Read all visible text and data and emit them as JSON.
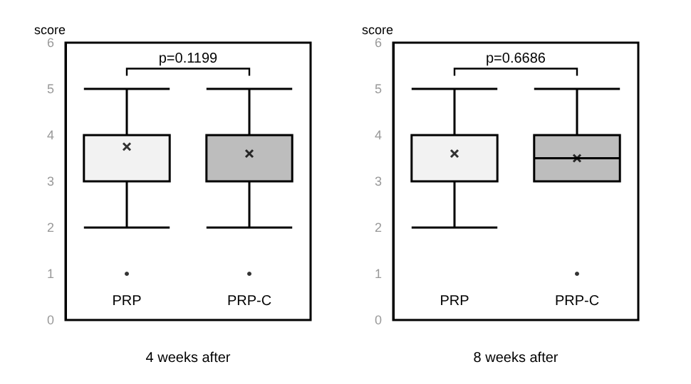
{
  "chart_data": [
    {
      "type": "box",
      "xlabel": "4 weeks after",
      "ylabel": "score",
      "categories": [
        "PRP",
        "PRP-C"
      ],
      "colors": [
        "#f2f2f2",
        "#bdbdbd"
      ],
      "boxes": [
        {
          "low": 2,
          "q1": 3,
          "median": 4,
          "q3": 4,
          "high": 5,
          "mean": 3.75,
          "outliers": [
            1
          ]
        },
        {
          "low": 2,
          "q1": 3,
          "median": 4,
          "q3": 4,
          "high": 5,
          "mean": 3.6,
          "outliers": [
            1
          ]
        }
      ],
      "ylim": [
        0,
        6
      ],
      "yticks": [
        0,
        1,
        2,
        3,
        4,
        5,
        6
      ],
      "annotations": [
        "p=0.1199"
      ]
    },
    {
      "type": "box",
      "xlabel": "8 weeks after",
      "ylabel": "score",
      "categories": [
        "PRP",
        "PRP-C"
      ],
      "colors": [
        "#f2f2f2",
        "#bdbdbd"
      ],
      "boxes": [
        {
          "low": 2,
          "q1": 3,
          "median": 4,
          "q3": 4,
          "high": 5,
          "mean": 3.6
        },
        {
          "low": 3,
          "q1": 3,
          "median": 3.5,
          "q3": 4,
          "high": 5,
          "mean": 3.5,
          "outliers": [
            1
          ]
        }
      ],
      "ylim": [
        0,
        6
      ],
      "yticks": [
        0,
        1,
        2,
        3,
        4,
        5,
        6
      ],
      "annotations": [
        "p=0.6686"
      ]
    }
  ]
}
